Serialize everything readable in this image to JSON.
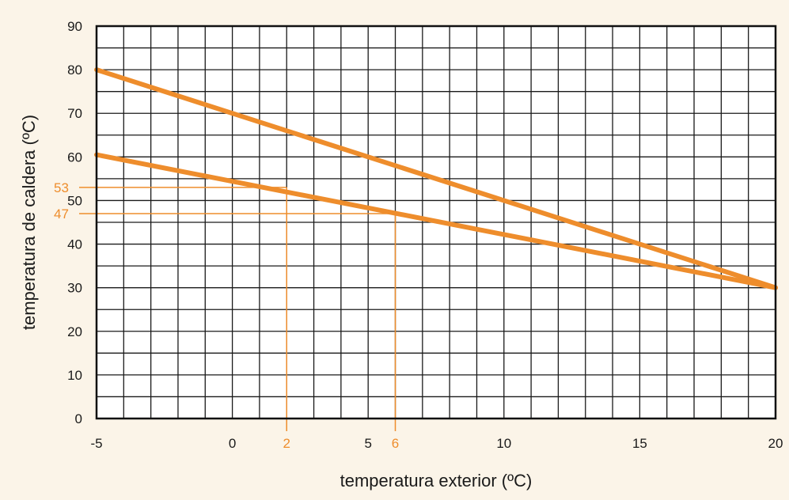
{
  "chart_data": {
    "type": "line",
    "xlabel": "temperatura exterior (ºC)",
    "ylabel": "temperatura de caldera (ºC)",
    "xlim": [
      -5,
      20
    ],
    "ylim": [
      0,
      90
    ],
    "x_ticks": [
      "-5",
      "0",
      "5",
      "10",
      "15",
      "20"
    ],
    "y_ticks": [
      "0",
      "10",
      "20",
      "30",
      "40",
      "50",
      "60",
      "70",
      "80",
      "90"
    ],
    "grid": true,
    "series": [
      {
        "x": [
          -5,
          20
        ],
        "y": [
          80,
          30
        ],
        "color": "#ee8d2c"
      },
      {
        "x": [
          -5,
          20
        ],
        "y": [
          60.5,
          30
        ],
        "color": "#ee8d2c"
      }
    ],
    "reference_points": [
      {
        "x": 2,
        "y": 53,
        "x_label": "2",
        "y_label": "53"
      },
      {
        "x": 6,
        "y": 47,
        "x_label": "6",
        "y_label": "47"
      }
    ],
    "colors": {
      "series": "#ee8d2c",
      "reference": "#ee8d2c",
      "grid": "#1a1a1a",
      "background": "#fbf4e8",
      "plot_background": "#ffffff"
    }
  }
}
